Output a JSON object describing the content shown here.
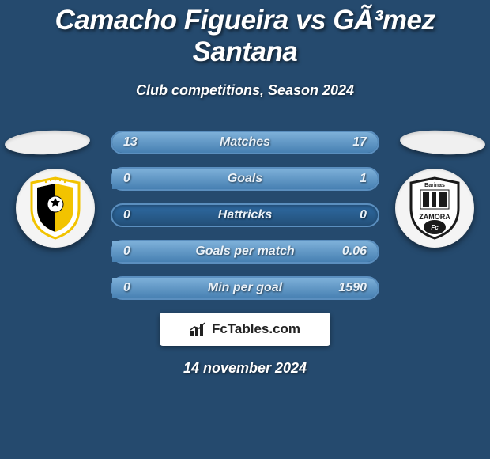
{
  "header": {
    "title": "Camacho Figueira vs GÃ³mez Santana",
    "title_fontsize": 35,
    "title_color": "#ffffff",
    "subtitle": "Club competitions, Season 2024",
    "subtitle_fontsize": 18,
    "subtitle_color": "#ffffff"
  },
  "teams": {
    "left": {
      "name": "Deportivo Táchira",
      "shield_colors": {
        "primary": "#f2c300",
        "secondary": "#000000",
        "accent": "#ffffff"
      }
    },
    "right": {
      "name": "Zamora FC (Barinas)",
      "shield_colors": {
        "primary": "#1a1a1a",
        "secondary": "#ffffff",
        "accent": "#bfbfbf"
      }
    }
  },
  "stats": {
    "rows": [
      {
        "label": "Matches",
        "left": "13",
        "right": "17",
        "left_pct": 43,
        "right_pct": 57
      },
      {
        "label": "Goals",
        "left": "0",
        "right": "1",
        "left_pct": 0,
        "right_pct": 100
      },
      {
        "label": "Hattricks",
        "left": "0",
        "right": "0",
        "left_pct": 0,
        "right_pct": 0
      },
      {
        "label": "Goals per match",
        "left": "0",
        "right": "0.06",
        "left_pct": 0,
        "right_pct": 100
      },
      {
        "label": "Min per goal",
        "left": "0",
        "right": "1590",
        "left_pct": 0,
        "right_pct": 100
      }
    ],
    "label_fontsize": 16,
    "value_fontsize": 16,
    "row_bg": "#234f78",
    "row_border": "#5b8fbf",
    "fill_gradient_top": "#7db0d9",
    "fill_gradient_bottom": "#4780b2"
  },
  "brand": {
    "text": "FcTables.com",
    "fontsize": 17,
    "text_color": "#222222",
    "box_bg": "#ffffff"
  },
  "footer": {
    "date": "14 november 2024",
    "fontsize": 18,
    "color": "#ffffff"
  },
  "style": {
    "background_color": "#254a6e",
    "oval_color": "#f0f0f0",
    "badge_bg": "#f4f4f4"
  }
}
